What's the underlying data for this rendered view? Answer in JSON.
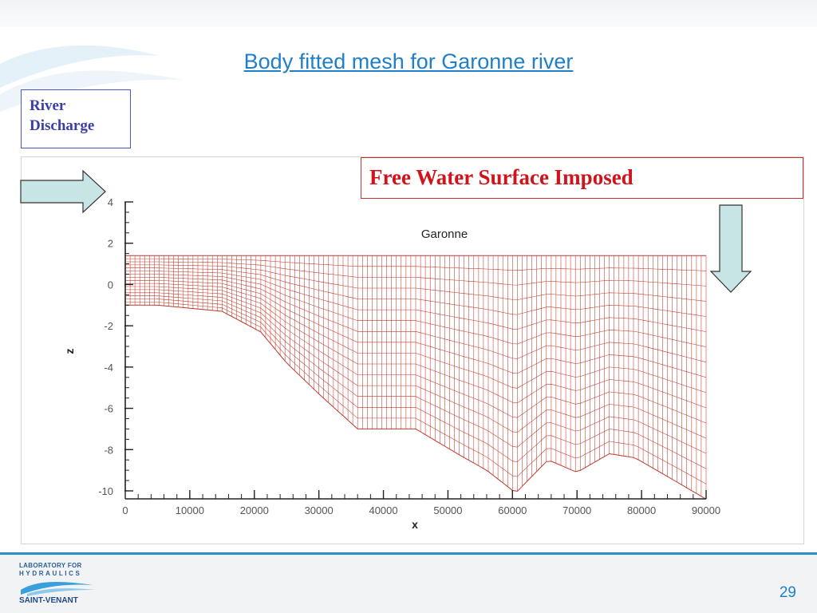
{
  "slide": {
    "title": "Body fitted mesh for Garonne river",
    "page_number": "29"
  },
  "callouts": {
    "river_discharge": [
      "River",
      "Discharge"
    ],
    "free_surface": "Free Water Surface Imposed"
  },
  "logo": {
    "line1": "LABORATORY FOR",
    "line2": "HYDRAULICS",
    "line3": "SAINT-VENANT"
  },
  "colors": {
    "accent": "#1f7fc8",
    "mesh": "#c0392b",
    "arrow_fill": "#c7e5e4",
    "red_text": "#d0141c"
  },
  "chart_data": {
    "type": "mesh",
    "title": "Garonne",
    "xlabel": "x",
    "ylabel": "z",
    "xlim": [
      0,
      90000
    ],
    "ylim": [
      -10,
      4
    ],
    "x_ticks": [
      0,
      10000,
      20000,
      30000,
      40000,
      50000,
      60000,
      70000,
      80000,
      90000
    ],
    "y_ticks": [
      4,
      2,
      0,
      -2,
      -4,
      -6,
      -8,
      -10
    ],
    "free_surface_z": 1.4,
    "bed_profile": [
      {
        "x": 0,
        "z": -1.0
      },
      {
        "x": 5000,
        "z": -1.0
      },
      {
        "x": 15000,
        "z": -1.3
      },
      {
        "x": 21000,
        "z": -2.3
      },
      {
        "x": 25000,
        "z": -3.8
      },
      {
        "x": 30000,
        "z": -5.3
      },
      {
        "x": 36000,
        "z": -7.0
      },
      {
        "x": 45000,
        "z": -7.0
      },
      {
        "x": 52000,
        "z": -8.3
      },
      {
        "x": 56000,
        "z": -9.0
      },
      {
        "x": 60500,
        "z": -10.1
      },
      {
        "x": 65500,
        "z": -8.5
      },
      {
        "x": 70000,
        "z": -9.1
      },
      {
        "x": 75000,
        "z": -8.2
      },
      {
        "x": 79000,
        "z": -8.4
      },
      {
        "x": 84000,
        "z": -9.3
      },
      {
        "x": 90000,
        "z": -10.4
      }
    ],
    "vertical_layers": 16,
    "longitudinal_cells": 120
  }
}
